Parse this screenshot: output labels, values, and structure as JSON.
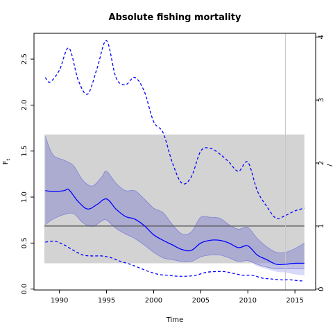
{
  "chart_data": {
    "type": "line",
    "title": "Absolute fishing mortality",
    "xlabel": "Time",
    "ylabel": "F",
    "ylabel_sub": "t",
    "right_axis_label_fragment": "/",
    "xlim": [
      1987.3,
      2017.2
    ],
    "ylim": [
      -0.01,
      2.78
    ],
    "ylim_right": [
      0,
      4
    ],
    "x_ticks": [
      1990,
      1995,
      2000,
      2005,
      2010,
      2015
    ],
    "y_ticks": [
      0.0,
      0.5,
      1.0,
      1.5,
      2.0,
      2.5
    ],
    "y_ticks_right": [
      0,
      1,
      2,
      3,
      4
    ],
    "reference_line": {
      "y": 0.685,
      "x": [
        1988.4,
        2016.0
      ]
    },
    "grey_box": {
      "x": [
        1988.4,
        2016.0
      ],
      "y": [
        0.28,
        1.68
      ]
    },
    "vertical_line": {
      "x": 2014.0
    },
    "colors": {
      "main": "#0000ff",
      "band": "#8c8cd0",
      "band_light": "#d8d8f8",
      "grey_box": "#d3d3d3",
      "reference": "#555555",
      "vline": "#c8c8c8"
    },
    "series": [
      {
        "style": "solid",
        "x": [
          1988.5,
          1989.5,
          1990.5,
          1991.0,
          1992.0,
          1993.0,
          1994.0,
          1995.0,
          1996.0,
          1997.0,
          1998.0,
          1999.0,
          2000.0,
          2001.0,
          2002.0,
          2003.0,
          2004.0,
          2005.0,
          2006.0,
          2007.0,
          2008.0,
          2009.0,
          2010.0,
          2011.0,
          2012.0,
          2013.0,
          2014.0,
          2015.0,
          2016.0
        ],
        "values": [
          1.07,
          1.06,
          1.07,
          1.08,
          0.95,
          0.87,
          0.92,
          0.98,
          0.87,
          0.79,
          0.76,
          0.69,
          0.59,
          0.53,
          0.48,
          0.43,
          0.42,
          0.5,
          0.53,
          0.53,
          0.5,
          0.45,
          0.47,
          0.37,
          0.32,
          0.27,
          0.27,
          0.28,
          0.28
        ]
      },
      {
        "style": "dashed",
        "x": [
          1988.5,
          1989.0,
          1990.0,
          1991.0,
          1992.0,
          1993.0,
          1994.0,
          1995.0,
          1996.0,
          1997.0,
          1998.0,
          1999.0,
          2000.0,
          2001.0,
          2002.0,
          2003.0,
          2004.0,
          2005.0,
          2006.0,
          2007.0,
          2008.0,
          2009.0,
          2010.0,
          2011.0,
          2012.0,
          2013.0,
          2014.0,
          2015.0,
          2016.0
        ],
        "values": [
          2.3,
          2.25,
          2.38,
          2.62,
          2.27,
          2.12,
          2.4,
          2.7,
          2.3,
          2.22,
          2.3,
          2.15,
          1.82,
          1.7,
          1.37,
          1.15,
          1.22,
          1.5,
          1.53,
          1.47,
          1.38,
          1.28,
          1.38,
          1.07,
          0.9,
          0.77,
          0.8,
          0.85,
          0.88
        ]
      },
      {
        "style": "dashed",
        "x": [
          1988.5,
          1989.5,
          1990.5,
          1991.5,
          1992.5,
          1993.5,
          1994.5,
          1995.5,
          1996.5,
          1997.5,
          1998.5,
          1999.5,
          2000.5,
          2001.5,
          2002.5,
          2003.5,
          2004.5,
          2005.5,
          2006.5,
          2007.5,
          2008.5,
          2009.5,
          2010.5,
          2011.5,
          2012.5,
          2013.5,
          2014.5,
          2015.5,
          2016.0
        ],
        "values": [
          0.51,
          0.52,
          0.48,
          0.42,
          0.37,
          0.36,
          0.36,
          0.34,
          0.3,
          0.27,
          0.23,
          0.19,
          0.16,
          0.15,
          0.14,
          0.14,
          0.15,
          0.18,
          0.19,
          0.19,
          0.17,
          0.15,
          0.15,
          0.12,
          0.11,
          0.1,
          0.1,
          0.09,
          0.09
        ]
      }
    ],
    "band": {
      "x": [
        1988.5,
        1989.0,
        1989.5,
        1990.5,
        1991.5,
        1992.5,
        1993.5,
        1994.5,
        1995.0,
        1996.0,
        1997.0,
        1998.0,
        1999.0,
        2000.0,
        2001.0,
        2002.0,
        2003.0,
        2004.0,
        2005.0,
        2006.0,
        2007.0,
        2008.0,
        2009.0,
        2010.0,
        2011.0,
        2012.0,
        2013.0,
        2014.0,
        2015.0,
        2016.0
      ],
      "upper": [
        1.66,
        1.52,
        1.44,
        1.4,
        1.34,
        1.18,
        1.12,
        1.22,
        1.28,
        1.15,
        1.07,
        1.07,
        0.98,
        0.88,
        0.83,
        0.7,
        0.6,
        0.62,
        0.78,
        0.78,
        0.77,
        0.7,
        0.65,
        0.67,
        0.55,
        0.46,
        0.4,
        0.4,
        0.44,
        0.5
      ],
      "lower": [
        0.7,
        0.74,
        0.77,
        0.81,
        0.82,
        0.72,
        0.68,
        0.74,
        0.75,
        0.66,
        0.6,
        0.55,
        0.48,
        0.4,
        0.34,
        0.32,
        0.3,
        0.3,
        0.35,
        0.37,
        0.37,
        0.34,
        0.3,
        0.31,
        0.27,
        0.24,
        0.22,
        0.22,
        0.22,
        0.22
      ]
    },
    "band_light": {
      "x": [
        2010.5,
        2011.0,
        2012.0,
        2013.0,
        2014.0,
        2015.0,
        2016.0
      ],
      "upper": [
        0.3,
        0.27,
        0.24,
        0.22,
        0.22,
        0.22,
        0.22
      ],
      "lower": [
        0.28,
        0.25,
        0.22,
        0.19,
        0.18,
        0.16,
        0.15
      ]
    }
  }
}
